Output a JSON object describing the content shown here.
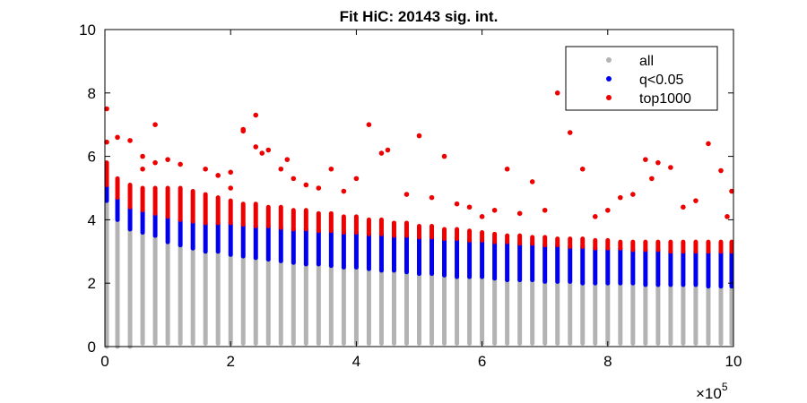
{
  "chart_data": {
    "type": "scatter",
    "title": "Fit HiC: 20143 sig. int.",
    "xlabel": "",
    "ylabel": "",
    "xlim": [
      0,
      1000000
    ],
    "ylim": [
      0,
      10
    ],
    "x_ticks": [
      0,
      200000,
      400000,
      600000,
      800000,
      1000000
    ],
    "x_tick_labels": [
      "0",
      "2",
      "4",
      "6",
      "8",
      "10"
    ],
    "x_multiplier": {
      "base": "×10",
      "exponent": "5"
    },
    "y_ticks": [
      0,
      2,
      4,
      6,
      8,
      10
    ],
    "y_tick_labels": [
      "0",
      "2",
      "4",
      "6",
      "8",
      "10"
    ],
    "grid": false,
    "legend_position": "top-right",
    "x_step": 20000,
    "series": [
      {
        "name": "all",
        "color": "#b3b3b3",
        "bands": [
          [
            0,
            0.0,
            4.6
          ],
          [
            20000,
            0.0,
            4.0
          ],
          [
            40000,
            0.0,
            3.7
          ],
          [
            60000,
            0.1,
            3.6
          ],
          [
            80000,
            0.1,
            3.5
          ],
          [
            100000,
            0.1,
            3.3
          ],
          [
            120000,
            0.1,
            3.2
          ],
          [
            140000,
            0.1,
            3.1
          ],
          [
            160000,
            0.1,
            3.0
          ],
          [
            180000,
            0.1,
            3.0
          ],
          [
            200000,
            0.1,
            2.9
          ],
          [
            220000,
            0.1,
            2.85
          ],
          [
            240000,
            0.1,
            2.8
          ],
          [
            260000,
            0.1,
            2.75
          ],
          [
            280000,
            0.1,
            2.7
          ],
          [
            300000,
            0.1,
            2.65
          ],
          [
            320000,
            0.1,
            2.6
          ],
          [
            340000,
            0.1,
            2.6
          ],
          [
            360000,
            0.1,
            2.55
          ],
          [
            380000,
            0.1,
            2.5
          ],
          [
            400000,
            0.1,
            2.5
          ],
          [
            420000,
            0.1,
            2.45
          ],
          [
            440000,
            0.1,
            2.4
          ],
          [
            460000,
            0.1,
            2.4
          ],
          [
            480000,
            0.1,
            2.35
          ],
          [
            500000,
            0.1,
            2.3
          ],
          [
            520000,
            0.1,
            2.3
          ],
          [
            540000,
            0.1,
            2.25
          ],
          [
            560000,
            0.1,
            2.2
          ],
          [
            580000,
            0.1,
            2.2
          ],
          [
            600000,
            0.1,
            2.2
          ],
          [
            620000,
            0.1,
            2.15
          ],
          [
            640000,
            0.1,
            2.1
          ],
          [
            660000,
            0.1,
            2.1
          ],
          [
            680000,
            0.1,
            2.1
          ],
          [
            700000,
            0.1,
            2.05
          ],
          [
            720000,
            0.1,
            2.05
          ],
          [
            740000,
            0.1,
            2.05
          ],
          [
            760000,
            0.1,
            2.0
          ],
          [
            780000,
            0.1,
            2.0
          ],
          [
            800000,
            0.1,
            2.0
          ],
          [
            820000,
            0.1,
            2.0
          ],
          [
            840000,
            0.1,
            2.0
          ],
          [
            860000,
            0.1,
            1.95
          ],
          [
            880000,
            0.1,
            1.95
          ],
          [
            900000,
            0.1,
            1.95
          ],
          [
            920000,
            0.1,
            1.95
          ],
          [
            940000,
            0.1,
            1.95
          ],
          [
            960000,
            0.1,
            1.9
          ],
          [
            980000,
            0.1,
            1.9
          ],
          [
            1000000,
            0.1,
            1.9
          ]
        ]
      },
      {
        "name": "q<0.05",
        "color": "#0000ee",
        "bands": [
          [
            0,
            4.6,
            5.1
          ],
          [
            20000,
            4.0,
            4.7
          ],
          [
            40000,
            3.7,
            4.4
          ],
          [
            60000,
            3.6,
            4.3
          ],
          [
            80000,
            3.5,
            4.2
          ],
          [
            100000,
            3.3,
            4.1
          ],
          [
            120000,
            3.2,
            4.0
          ],
          [
            140000,
            3.1,
            3.95
          ],
          [
            160000,
            3.0,
            3.9
          ],
          [
            180000,
            3.0,
            3.9
          ],
          [
            200000,
            2.9,
            3.9
          ],
          [
            220000,
            2.85,
            3.85
          ],
          [
            240000,
            2.8,
            3.8
          ],
          [
            260000,
            2.75,
            3.8
          ],
          [
            280000,
            2.7,
            3.75
          ],
          [
            300000,
            2.65,
            3.7
          ],
          [
            320000,
            2.6,
            3.7
          ],
          [
            340000,
            2.6,
            3.65
          ],
          [
            360000,
            2.55,
            3.65
          ],
          [
            380000,
            2.5,
            3.6
          ],
          [
            400000,
            2.5,
            3.6
          ],
          [
            420000,
            2.45,
            3.55
          ],
          [
            440000,
            2.4,
            3.55
          ],
          [
            460000,
            2.4,
            3.5
          ],
          [
            480000,
            2.35,
            3.5
          ],
          [
            500000,
            2.3,
            3.45
          ],
          [
            520000,
            2.3,
            3.45
          ],
          [
            540000,
            2.25,
            3.4
          ],
          [
            560000,
            2.2,
            3.4
          ],
          [
            580000,
            2.2,
            3.35
          ],
          [
            600000,
            2.2,
            3.35
          ],
          [
            620000,
            2.15,
            3.3
          ],
          [
            640000,
            2.1,
            3.3
          ],
          [
            660000,
            2.1,
            3.25
          ],
          [
            680000,
            2.1,
            3.25
          ],
          [
            700000,
            2.05,
            3.2
          ],
          [
            720000,
            2.05,
            3.2
          ],
          [
            740000,
            2.05,
            3.15
          ],
          [
            760000,
            2.0,
            3.15
          ],
          [
            780000,
            2.0,
            3.1
          ],
          [
            800000,
            2.0,
            3.1
          ],
          [
            820000,
            2.0,
            3.1
          ],
          [
            840000,
            2.0,
            3.05
          ],
          [
            860000,
            1.95,
            3.05
          ],
          [
            880000,
            1.95,
            3.05
          ],
          [
            900000,
            1.95,
            3.0
          ],
          [
            920000,
            1.95,
            3.0
          ],
          [
            940000,
            1.95,
            3.0
          ],
          [
            960000,
            1.9,
            3.0
          ],
          [
            980000,
            1.9,
            3.0
          ],
          [
            1000000,
            1.9,
            3.0
          ]
        ]
      },
      {
        "name": "top1000",
        "color": "#ee0000",
        "bands": [
          [
            0,
            5.1,
            5.8
          ],
          [
            20000,
            4.7,
            5.3
          ],
          [
            40000,
            4.4,
            5.1
          ],
          [
            60000,
            4.3,
            5.0
          ],
          [
            80000,
            4.2,
            5.0
          ],
          [
            100000,
            4.1,
            5.0
          ],
          [
            120000,
            4.0,
            5.0
          ],
          [
            140000,
            3.95,
            4.9
          ],
          [
            160000,
            3.9,
            4.8
          ],
          [
            180000,
            3.9,
            4.7
          ],
          [
            200000,
            3.9,
            4.6
          ],
          [
            220000,
            3.85,
            4.5
          ],
          [
            240000,
            3.8,
            4.5
          ],
          [
            260000,
            3.8,
            4.4
          ],
          [
            280000,
            3.75,
            4.4
          ],
          [
            300000,
            3.7,
            4.3
          ],
          [
            320000,
            3.7,
            4.3
          ],
          [
            340000,
            3.65,
            4.2
          ],
          [
            360000,
            3.65,
            4.2
          ],
          [
            380000,
            3.6,
            4.1
          ],
          [
            400000,
            3.6,
            4.1
          ],
          [
            420000,
            3.55,
            4.0
          ],
          [
            440000,
            3.55,
            4.0
          ],
          [
            460000,
            3.5,
            3.9
          ],
          [
            480000,
            3.5,
            3.9
          ],
          [
            500000,
            3.45,
            3.8
          ],
          [
            520000,
            3.45,
            3.8
          ],
          [
            540000,
            3.4,
            3.7
          ],
          [
            560000,
            3.4,
            3.7
          ],
          [
            580000,
            3.35,
            3.65
          ],
          [
            600000,
            3.35,
            3.6
          ],
          [
            620000,
            3.3,
            3.55
          ],
          [
            640000,
            3.3,
            3.5
          ],
          [
            660000,
            3.25,
            3.5
          ],
          [
            680000,
            3.25,
            3.45
          ],
          [
            700000,
            3.2,
            3.45
          ],
          [
            720000,
            3.2,
            3.4
          ],
          [
            740000,
            3.15,
            3.4
          ],
          [
            760000,
            3.15,
            3.4
          ],
          [
            780000,
            3.1,
            3.35
          ],
          [
            800000,
            3.1,
            3.35
          ],
          [
            820000,
            3.1,
            3.3
          ],
          [
            840000,
            3.05,
            3.3
          ],
          [
            860000,
            3.05,
            3.3
          ],
          [
            880000,
            3.05,
            3.3
          ],
          [
            900000,
            3.0,
            3.3
          ],
          [
            920000,
            3.0,
            3.3
          ],
          [
            940000,
            3.0,
            3.3
          ],
          [
            960000,
            3.0,
            3.3
          ],
          [
            980000,
            3.0,
            3.3
          ],
          [
            1000000,
            3.0,
            3.3
          ]
        ],
        "outliers": [
          [
            0,
            7.5
          ],
          [
            0,
            6.45
          ],
          [
            20000,
            6.6
          ],
          [
            40000,
            6.5
          ],
          [
            60000,
            6.0
          ],
          [
            60000,
            5.6
          ],
          [
            80000,
            7.0
          ],
          [
            80000,
            5.8
          ],
          [
            100000,
            5.9
          ],
          [
            120000,
            5.75
          ],
          [
            160000,
            5.6
          ],
          [
            180000,
            5.4
          ],
          [
            200000,
            5.5
          ],
          [
            200000,
            5.0
          ],
          [
            220000,
            6.85
          ],
          [
            220000,
            6.8
          ],
          [
            240000,
            7.3
          ],
          [
            240000,
            6.3
          ],
          [
            250000,
            6.1
          ],
          [
            260000,
            6.2
          ],
          [
            280000,
            5.6
          ],
          [
            290000,
            5.9
          ],
          [
            300000,
            5.3
          ],
          [
            320000,
            5.1
          ],
          [
            340000,
            5.0
          ],
          [
            360000,
            5.6
          ],
          [
            380000,
            4.9
          ],
          [
            400000,
            5.3
          ],
          [
            420000,
            7.0
          ],
          [
            440000,
            6.1
          ],
          [
            450000,
            6.2
          ],
          [
            480000,
            4.8
          ],
          [
            500000,
            6.65
          ],
          [
            520000,
            4.7
          ],
          [
            540000,
            6.0
          ],
          [
            560000,
            4.5
          ],
          [
            580000,
            4.4
          ],
          [
            600000,
            4.1
          ],
          [
            620000,
            4.3
          ],
          [
            640000,
            5.6
          ],
          [
            660000,
            4.2
          ],
          [
            680000,
            5.2
          ],
          [
            700000,
            4.3
          ],
          [
            720000,
            8.0
          ],
          [
            740000,
            6.75
          ],
          [
            760000,
            5.6
          ],
          [
            780000,
            4.1
          ],
          [
            800000,
            4.3
          ],
          [
            820000,
            4.7
          ],
          [
            840000,
            4.8
          ],
          [
            860000,
            5.9
          ],
          [
            870000,
            5.3
          ],
          [
            880000,
            5.8
          ],
          [
            900000,
            5.65
          ],
          [
            920000,
            4.4
          ],
          [
            940000,
            4.6
          ],
          [
            960000,
            6.4
          ],
          [
            980000,
            5.55
          ],
          [
            990000,
            4.1
          ],
          [
            1000000,
            4.9
          ]
        ]
      }
    ]
  }
}
